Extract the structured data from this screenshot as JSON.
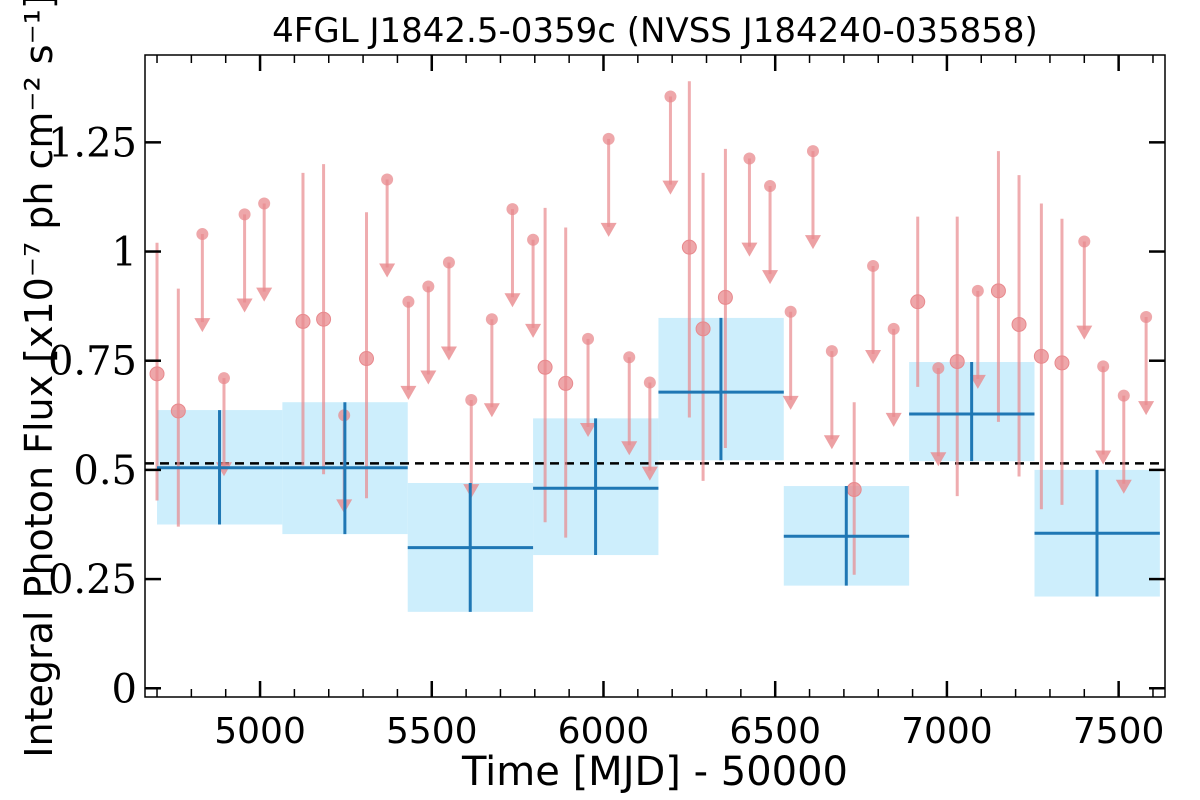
{
  "chart_data": {
    "type": "scatter",
    "title": "4FGL J1842.5-0359c (NVSS J184240-035858)",
    "xlabel": "Time [MJD] - 50000",
    "ylabel": "Integral Photon Flux [x10⁻⁷ ph cm⁻² s⁻¹]",
    "xlim": [
      4665,
      7635
    ],
    "ylim": [
      -0.02,
      1.45
    ],
    "xticks": [
      5000,
      5500,
      6000,
      6500,
      7000,
      7500
    ],
    "xtick_labels": [
      "5000",
      "5500",
      "6000",
      "6500",
      "7000",
      "7500"
    ],
    "yticks": [
      0,
      0.25,
      0.5,
      0.75,
      1.0,
      1.25
    ],
    "ytick_labels": [
      "0",
      "0.25",
      "0.5",
      "0.75",
      "1",
      "1.25"
    ],
    "mean_line": 0.515,
    "colors": {
      "fine_bins": "#e8898d",
      "coarse_bins": "#1f77b4",
      "coarse_band": "#cdeefc",
      "mean_line": "#000000"
    },
    "coarse_bins": [
      {
        "x_start": 4700,
        "x_end": 5065,
        "x_center": 4882,
        "y": 0.505,
        "y_low": 0.375,
        "y_high": 0.637
      },
      {
        "x_start": 5065,
        "x_end": 5430,
        "x_center": 5247,
        "y": 0.505,
        "y_low": 0.353,
        "y_high": 0.655
      },
      {
        "x_start": 5430,
        "x_end": 5795,
        "x_center": 5612,
        "y": 0.322,
        "y_low": 0.175,
        "y_high": 0.47
      },
      {
        "x_start": 5795,
        "x_end": 6160,
        "x_center": 5977,
        "y": 0.458,
        "y_low": 0.305,
        "y_high": 0.618
      },
      {
        "x_start": 6160,
        "x_end": 6525,
        "x_center": 6342,
        "y": 0.678,
        "y_low": 0.522,
        "y_high": 0.848
      },
      {
        "x_start": 6525,
        "x_end": 6890,
        "x_center": 6707,
        "y": 0.348,
        "y_low": 0.235,
        "y_high": 0.463
      },
      {
        "x_start": 6890,
        "x_end": 7255,
        "x_center": 7072,
        "y": 0.628,
        "y_low": 0.52,
        "y_high": 0.747
      },
      {
        "x_start": 7255,
        "x_end": 7620,
        "x_center": 7437,
        "y": 0.355,
        "y_low": 0.21,
        "y_high": 0.5
      }
    ],
    "fine_points": [
      {
        "x": 4700,
        "y": 0.72,
        "y_low": 0.43,
        "y_high": 1.02
      },
      {
        "x": 4762,
        "y": 0.635,
        "y_low": 0.37,
        "y_high": 0.915
      },
      {
        "x": 5125,
        "y": 0.84,
        "y_low": 0.51,
        "y_high": 1.18
      },
      {
        "x": 5185,
        "y": 0.845,
        "y_low": 0.49,
        "y_high": 1.2
      },
      {
        "x": 5310,
        "y": 0.755,
        "y_low": 0.435,
        "y_high": 1.09
      },
      {
        "x": 5830,
        "y": 0.735,
        "y_low": 0.38,
        "y_high": 1.1
      },
      {
        "x": 5890,
        "y": 0.698,
        "y_low": 0.345,
        "y_high": 1.055
      },
      {
        "x": 6250,
        "y": 1.01,
        "y_low": 0.62,
        "y_high": 1.39
      },
      {
        "x": 6290,
        "y": 0.823,
        "y_low": 0.475,
        "y_high": 1.18
      },
      {
        "x": 6355,
        "y": 0.895,
        "y_low": 0.55,
        "y_high": 1.235
      },
      {
        "x": 6730,
        "y": 0.455,
        "y_low": 0.26,
        "y_high": 0.655
      },
      {
        "x": 6915,
        "y": 0.885,
        "y_low": 0.69,
        "y_high": 1.08
      },
      {
        "x": 7030,
        "y": 0.748,
        "y_low": 0.44,
        "y_high": 1.08
      },
      {
        "x": 7150,
        "y": 0.91,
        "y_low": 0.61,
        "y_high": 1.23
      },
      {
        "x": 7210,
        "y": 0.833,
        "y_low": 0.485,
        "y_high": 1.175
      },
      {
        "x": 7275,
        "y": 0.76,
        "y_low": 0.41,
        "y_high": 1.11
      },
      {
        "x": 7335,
        "y": 0.745,
        "y_low": 0.42,
        "y_high": 1.075
      }
    ],
    "upper_limits": [
      {
        "x": 4832,
        "y": 1.04
      },
      {
        "x": 4895,
        "y": 0.71
      },
      {
        "x": 4955,
        "y": 1.085
      },
      {
        "x": 5012,
        "y": 1.11
      },
      {
        "x": 5245,
        "y": 0.625
      },
      {
        "x": 5370,
        "y": 1.165
      },
      {
        "x": 5432,
        "y": 0.885
      },
      {
        "x": 5490,
        "y": 0.92
      },
      {
        "x": 5550,
        "y": 0.975
      },
      {
        "x": 5615,
        "y": 0.66
      },
      {
        "x": 5675,
        "y": 0.845
      },
      {
        "x": 5735,
        "y": 1.097
      },
      {
        "x": 5795,
        "y": 1.027
      },
      {
        "x": 5955,
        "y": 0.8
      },
      {
        "x": 6015,
        "y": 1.258
      },
      {
        "x": 6075,
        "y": 0.758
      },
      {
        "x": 6135,
        "y": 0.7
      },
      {
        "x": 6195,
        "y": 1.355
      },
      {
        "x": 6425,
        "y": 1.213
      },
      {
        "x": 6485,
        "y": 1.15
      },
      {
        "x": 6545,
        "y": 0.862
      },
      {
        "x": 6610,
        "y": 1.23
      },
      {
        "x": 6665,
        "y": 0.772
      },
      {
        "x": 6785,
        "y": 0.967
      },
      {
        "x": 6845,
        "y": 0.823
      },
      {
        "x": 6975,
        "y": 0.733
      },
      {
        "x": 7090,
        "y": 0.91
      },
      {
        "x": 7400,
        "y": 1.023
      },
      {
        "x": 7455,
        "y": 0.737
      },
      {
        "x": 7515,
        "y": 0.67
      },
      {
        "x": 7580,
        "y": 0.85
      }
    ]
  }
}
